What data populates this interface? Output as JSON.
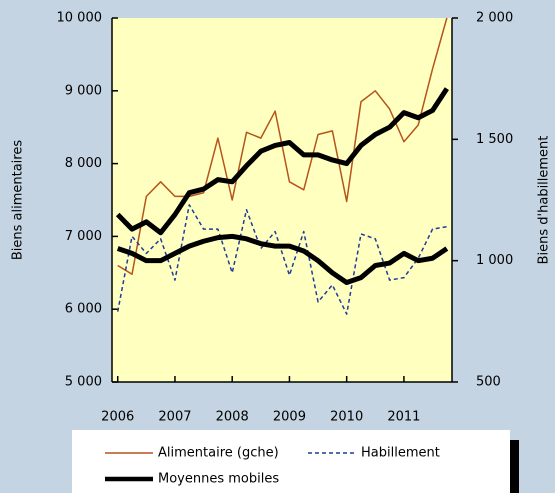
{
  "chart_data": {
    "type": "line",
    "ylabel": "Biens alimentaires",
    "y2label": "Biens d'habillement",
    "x": [
      2006.0,
      2006.25,
      2006.5,
      2006.75,
      2007.0,
      2007.25,
      2007.5,
      2007.75,
      2008.0,
      2008.25,
      2008.5,
      2008.75,
      2009.0,
      2009.25,
      2009.5,
      2009.75,
      2010.0,
      2010.25,
      2010.5,
      2010.75,
      2011.0,
      2011.25,
      2011.5,
      2011.75
    ],
    "xlim": [
      2005.9,
      2011.84
    ],
    "xticks": [
      2006,
      2007,
      2008,
      2009,
      2010,
      2011
    ],
    "ylim": [
      5000,
      10000
    ],
    "yticks": [
      {
        "value": 5000,
        "label": "5 000"
      },
      {
        "value": 6000,
        "label": "6 000"
      },
      {
        "value": 7000,
        "label": "7 000"
      },
      {
        "value": 8000,
        "label": "8 000"
      },
      {
        "value": 9000,
        "label": "9 000"
      },
      {
        "value": 10000,
        "label": "10 000"
      }
    ],
    "y2lim": [
      500,
      2000
    ],
    "y2ticks": [
      500,
      {
        "value": 1000,
        "label": "1 000"
      },
      {
        "value": 1500,
        "label": "1 500"
      },
      {
        "value": 2000,
        "label": "2 000"
      }
    ],
    "series": [
      {
        "name": "Alimentaire (gche)",
        "color": "#b5541b",
        "style": "solid",
        "width": 1.5,
        "values": [
          6600,
          6480,
          7550,
          7750,
          7550,
          7550,
          7600,
          8350,
          7500,
          8430,
          8350,
          8720,
          7750,
          7640,
          8400,
          8450,
          7480,
          8850,
          9000,
          8750,
          8300,
          8530,
          9300,
          10000
        ]
      },
      {
        "name": "Habillement",
        "color": "#1f3c99",
        "style": "dashed",
        "width": 1.5,
        "axis": "y2",
        "values": [
          790,
          1100,
          1030,
          1090,
          920,
          1230,
          1130,
          1130,
          950,
          1210,
          1050,
          1120,
          940,
          1120,
          830,
          900,
          780,
          1110,
          1090,
          920,
          930,
          1010,
          1130,
          1140
        ]
      },
      {
        "name": "Moyennes mobiles",
        "color": "#000000",
        "style": "solid",
        "width": 5,
        "values": [
          7300,
          7100,
          7200,
          7050,
          7300,
          7600,
          7650,
          7780,
          7750,
          7970,
          8170,
          8250,
          8290,
          8120,
          8120,
          8050,
          8000,
          8250,
          8400,
          8500,
          8700,
          8630,
          8730,
          9030
        ]
      },
      {
        "color": "#000000",
        "style": "solid",
        "width": 5,
        "axis": "y2",
        "values": [
          1050,
          1030,
          1000,
          1000,
          1030,
          1060,
          1080,
          1095,
          1100,
          1090,
          1070,
          1060,
          1060,
          1040,
          1000,
          950,
          910,
          930,
          980,
          990,
          1030,
          1000,
          1010,
          1050
        ]
      }
    ]
  }
}
